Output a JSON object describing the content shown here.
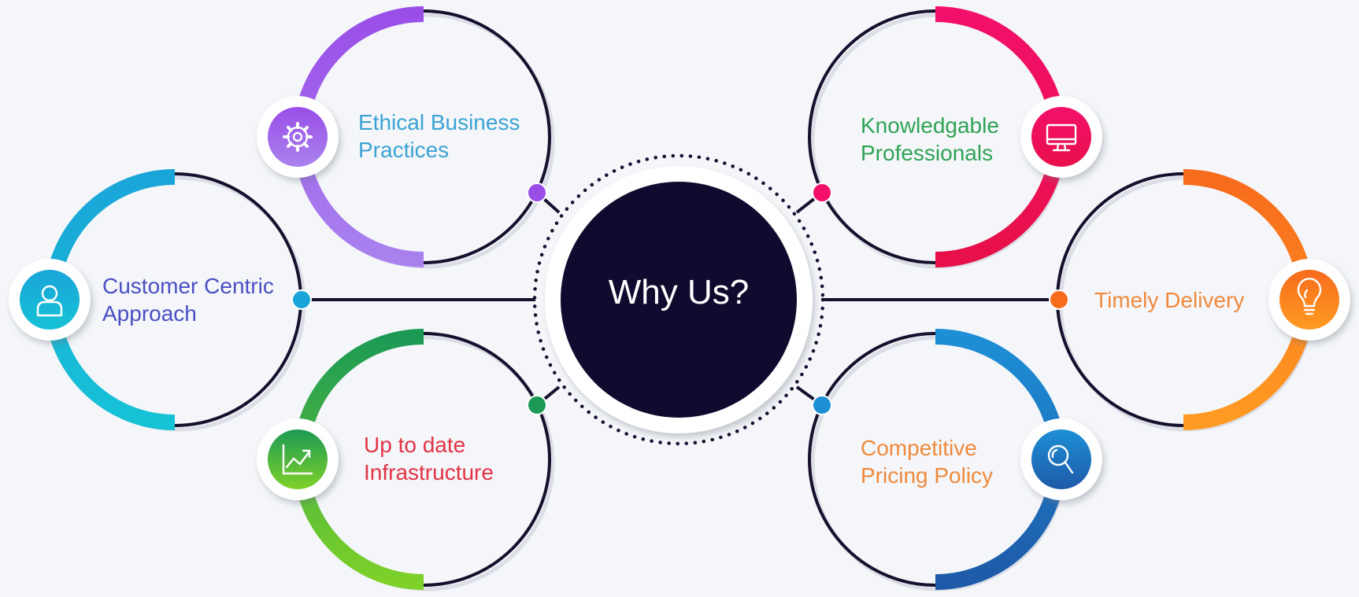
{
  "center": {
    "title": "Why Us?",
    "fill": "#120a2e"
  },
  "outline_color": "#16102e",
  "nodes": [
    {
      "id": "ethical-business-practices",
      "label_lines": [
        "Ethical Business",
        "Practices"
      ],
      "label_color": "#3ba3d4",
      "accent_from": "#9a4ee8",
      "accent_to": "#a982ee",
      "icon": "gear-icon",
      "arc_side": "left",
      "connector_dot": true
    },
    {
      "id": "customer-centric-approach",
      "label_lines": [
        "Customer Centric",
        "Approach"
      ],
      "label_color": "#4a4fc4",
      "accent_from": "#1aa5d9",
      "accent_to": "#16c2d6",
      "icon": "user-icon",
      "arc_side": "left",
      "connector_dot": true
    },
    {
      "id": "up-to-date-infrastructure",
      "label_lines": [
        "Up to date",
        "Infrastructure"
      ],
      "label_color": "#e33345",
      "accent_from": "#1c9a55",
      "accent_to": "#7ed128",
      "icon": "growth-chart-icon",
      "arc_side": "left",
      "connector_dot": true
    },
    {
      "id": "knowledgable-professionals",
      "label_lines": [
        "Knowledgable",
        "Professionals"
      ],
      "label_color": "#2fa356",
      "accent_from": "#f2106a",
      "accent_to": "#e8104a",
      "icon": "monitor-icon",
      "arc_side": "right",
      "connector_dot": true
    },
    {
      "id": "timely-delivery",
      "label_lines": [
        "Timely Delivery"
      ],
      "label_color": "#ef8a3c",
      "accent_from": "#f76b1c",
      "accent_to": "#ff9b22",
      "icon": "lightbulb-icon",
      "arc_side": "right",
      "connector_dot": true
    },
    {
      "id": "competitive-pricing-policy",
      "label_lines": [
        "Competitive",
        "Pricing Policy"
      ],
      "label_color": "#ef8a3c",
      "accent_from": "#1d8fd6",
      "accent_to": "#1e5aa8",
      "icon": "search-icon",
      "arc_side": "right",
      "connector_dot": true
    }
  ]
}
